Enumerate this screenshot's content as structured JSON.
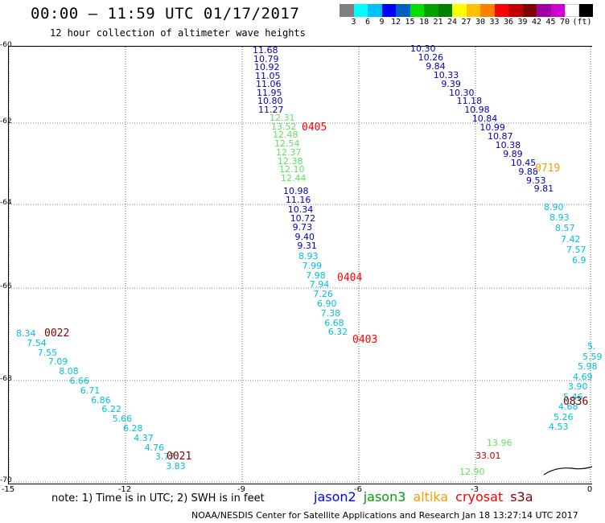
{
  "header": {
    "title": "00:00 – 11:59 UTC 01/17/2017",
    "subtitle": "12 hour collection of altimeter wave heights"
  },
  "colorbar": {
    "colors": [
      "#808080",
      "#00ffff",
      "#00c0ff",
      "#0000ff",
      "#0060c0",
      "#00e000",
      "#00a000",
      "#008000",
      "#ffff00",
      "#ffc000",
      "#ff8000",
      "#ff0000",
      "#c00000",
      "#800000",
      "#a000a0",
      "#d000d0",
      "#ffffff",
      "#000000"
    ],
    "labels": [
      "3",
      "6",
      "9",
      "12",
      "15",
      "18",
      "21",
      "24",
      "27",
      "30",
      "33",
      "36",
      "39",
      "42",
      "45",
      "70",
      "(ft)"
    ]
  },
  "axes": {
    "lat_ticks": [
      "-60",
      "-62",
      "-64",
      "-66",
      "-68",
      "-70"
    ],
    "lon_ticks": [
      "-15",
      "-12",
      "-9",
      "-6",
      "-3",
      "0"
    ]
  },
  "tracks": {
    "jason2_a": {
      "color": "#0000c0",
      "values": [
        "11.68",
        "10.79",
        "10.92",
        "11.05",
        "11.06",
        "11.95",
        "10.80",
        "11.27"
      ]
    },
    "jason3_a": {
      "color": "#60e060",
      "values": [
        "12.31",
        "13.52",
        "12.48",
        "12.54",
        "12.37",
        "12.38",
        "12.10",
        "12.44"
      ]
    },
    "jason2_b": {
      "color": "#0000c0",
      "values": [
        "10.98",
        "11.16",
        "10.34",
        "10.72",
        "9.73",
        "9.40",
        "9.31"
      ]
    },
    "cyan_a": {
      "color": "#00c0e0",
      "values": [
        "8.93",
        "7.99",
        "7.98",
        "7.94",
        "7.26",
        "6.90",
        "7.38",
        "6.68",
        "6.32"
      ]
    },
    "jason2_c": {
      "color": "#0000c0",
      "values": [
        "10.30",
        "10.26",
        "9.84",
        "10.33",
        "9.39",
        "10.30",
        "11.18",
        "10.98",
        "10.84",
        "10.99",
        "10.87",
        "10.38",
        "9.89",
        "10.45",
        "9.88",
        "9.53",
        "9.81"
      ]
    },
    "cyan_b": {
      "color": "#00c0e0",
      "values": [
        "8.90",
        "8.93",
        "8.57",
        "7.42",
        "7.57",
        "6.9"
      ]
    },
    "cyan_left": {
      "color": "#00c0e0",
      "values": [
        "8.34",
        "7.54",
        "7.55",
        "7.09",
        "8.08",
        "6.66",
        "6.71",
        "6.86",
        "6.22",
        "5.66",
        "6.28",
        "4.37",
        "4.76",
        "3.77",
        "3.83"
      ]
    },
    "cyan_right": {
      "color": "#00c0e0",
      "values": [
        "5.",
        "5.59",
        "5.98",
        "4.69",
        "3.90",
        "5.46",
        "4.68",
        "5.26",
        "4.53"
      ]
    },
    "jason3_b": {
      "color": "#60e060",
      "values": [
        "13.96",
        "12.90"
      ]
    },
    "red_b": {
      "color": "#c00000",
      "values": [
        "33.01"
      ]
    }
  },
  "times": [
    {
      "label": "0405",
      "color": "#ff0000"
    },
    {
      "label": "0404",
      "color": "#ff0000"
    },
    {
      "label": "0403",
      "color": "#ff0000"
    },
    {
      "label": "0719",
      "color": "#ff9900"
    },
    {
      "label": "0022",
      "color": "#800000"
    },
    {
      "label": "0021",
      "color": "#800000"
    },
    {
      "label": "0836",
      "color": "#800000"
    }
  ],
  "note": "note: 1) Time is in UTC; 2) SWH is in feet",
  "legend": [
    {
      "label": "jason2",
      "color": "#0000ff"
    },
    {
      "label": "jason3",
      "color": "#00a000"
    },
    {
      "label": "altika",
      "color": "#ff9900"
    },
    {
      "label": "cryosat",
      "color": "#ff0000"
    },
    {
      "label": "s3a",
      "color": "#800000"
    }
  ],
  "footer": "NOAA/NESDIS Center for Satellite Applications and Research   Jan 18 13:27:14 UTC 2017"
}
